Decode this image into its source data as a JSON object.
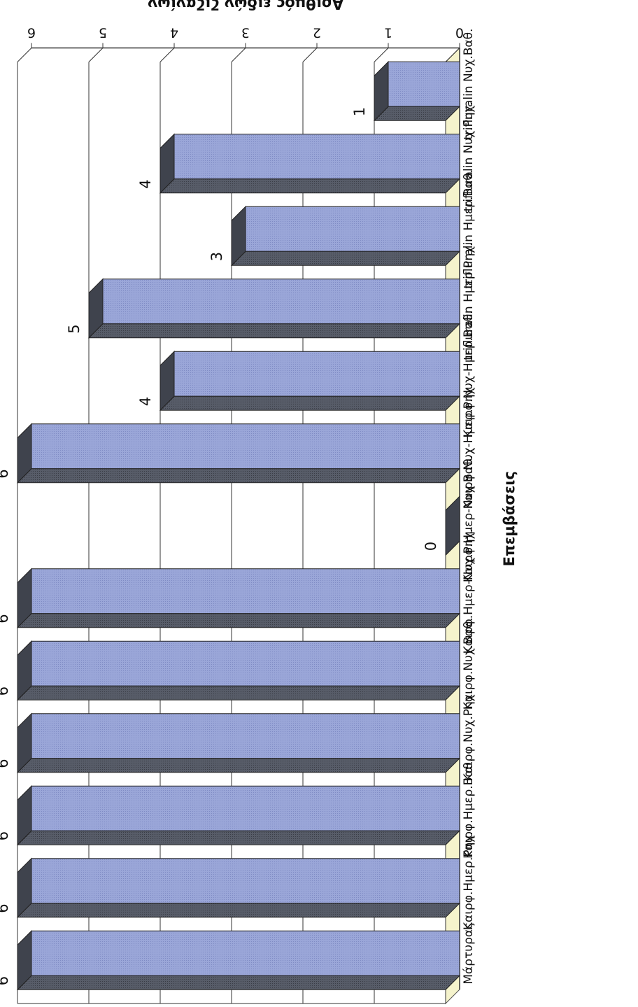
{
  "chart_data": {
    "type": "bar",
    "orientation": "vertical-rotated-180",
    "xlabel": "Επεμβάσεις",
    "ylabel": "Αριθμός ειδών ζιζανίων",
    "ylim": [
      0,
      6
    ],
    "yticks": [
      0,
      1,
      2,
      3,
      4,
      5,
      6
    ],
    "grid": true,
    "legend": "none",
    "categories": [
      "Μάρτυρας",
      "Καιρφ.Ημερ.Ρηχ.",
      "Καιρφ.Ημερ.Βαθ.",
      "Καιρφ.Νυχ.Ρηχ.",
      "Καιρφ.Νυχ.Βαθ.",
      "Καιρφ.Ημερ-Νυχ.Ρηχ.",
      "Καιρφ.Ημερ-Νυχ.Βαθ.",
      "Καιρφ.Νυχ-Ημερ.Ρηχ.",
      "Καιρφ.Νυχ-Ημερ.Βαθ.",
      "trifluralin Ημερ.Ρηχ.",
      "trifluralin Ημερ.Βαθ.",
      "trifluralin Νυχ.Ρηχ.",
      "trifluralin Νυχ.Βαθ."
    ],
    "values": [
      6,
      6,
      6,
      6,
      6,
      6,
      0,
      6,
      4,
      5,
      3,
      4,
      1
    ],
    "data_labels": [
      "6",
      "6",
      "6",
      "6",
      "6",
      "6",
      "0",
      "6",
      "4",
      "5",
      "3",
      "4",
      "1"
    ],
    "colors": {
      "bar_face": "#9aa6d8",
      "bar_top": "#555a66",
      "bar_side": "#3f434d",
      "floor": "#f5f3cc",
      "grid": "#333333"
    }
  }
}
